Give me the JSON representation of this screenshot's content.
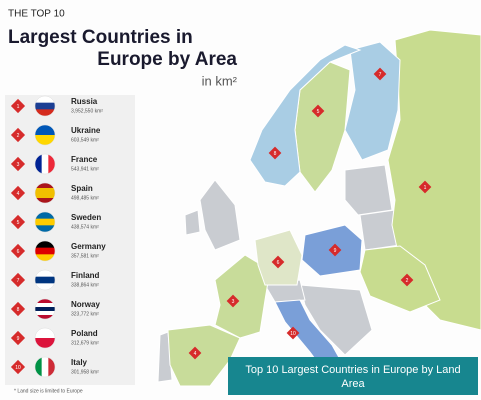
{
  "header": {
    "kicker": "THE TOP 10",
    "title_line1": "Largest Countries in",
    "title_line2": "Europe by Area",
    "unit": "in km²"
  },
  "items": [
    {
      "rank": 1,
      "name": "Russia",
      "area": "3,952,550 km²"
    },
    {
      "rank": 2,
      "name": "Ukraine",
      "area": "603,549 km²"
    },
    {
      "rank": 3,
      "name": "France",
      "area": "543,941 km²"
    },
    {
      "rank": 4,
      "name": "Spain",
      "area": "498,485 km²"
    },
    {
      "rank": 5,
      "name": "Sweden",
      "area": "438,574 km²"
    },
    {
      "rank": 6,
      "name": "Germany",
      "area": "357,581 km²"
    },
    {
      "rank": 7,
      "name": "Finland",
      "area": "338,864 km²"
    },
    {
      "rank": 8,
      "name": "Norway",
      "area": "323,772 km²"
    },
    {
      "rank": 9,
      "name": "Poland",
      "area": "312,679 km²"
    },
    {
      "rank": 10,
      "name": "Italy",
      "area": "301,958 km²"
    }
  ],
  "footnote": "* Land size is limited to Europe",
  "caption": [
    "Top 10 Largest Countries in Europe by Land",
    "Area"
  ]
}
